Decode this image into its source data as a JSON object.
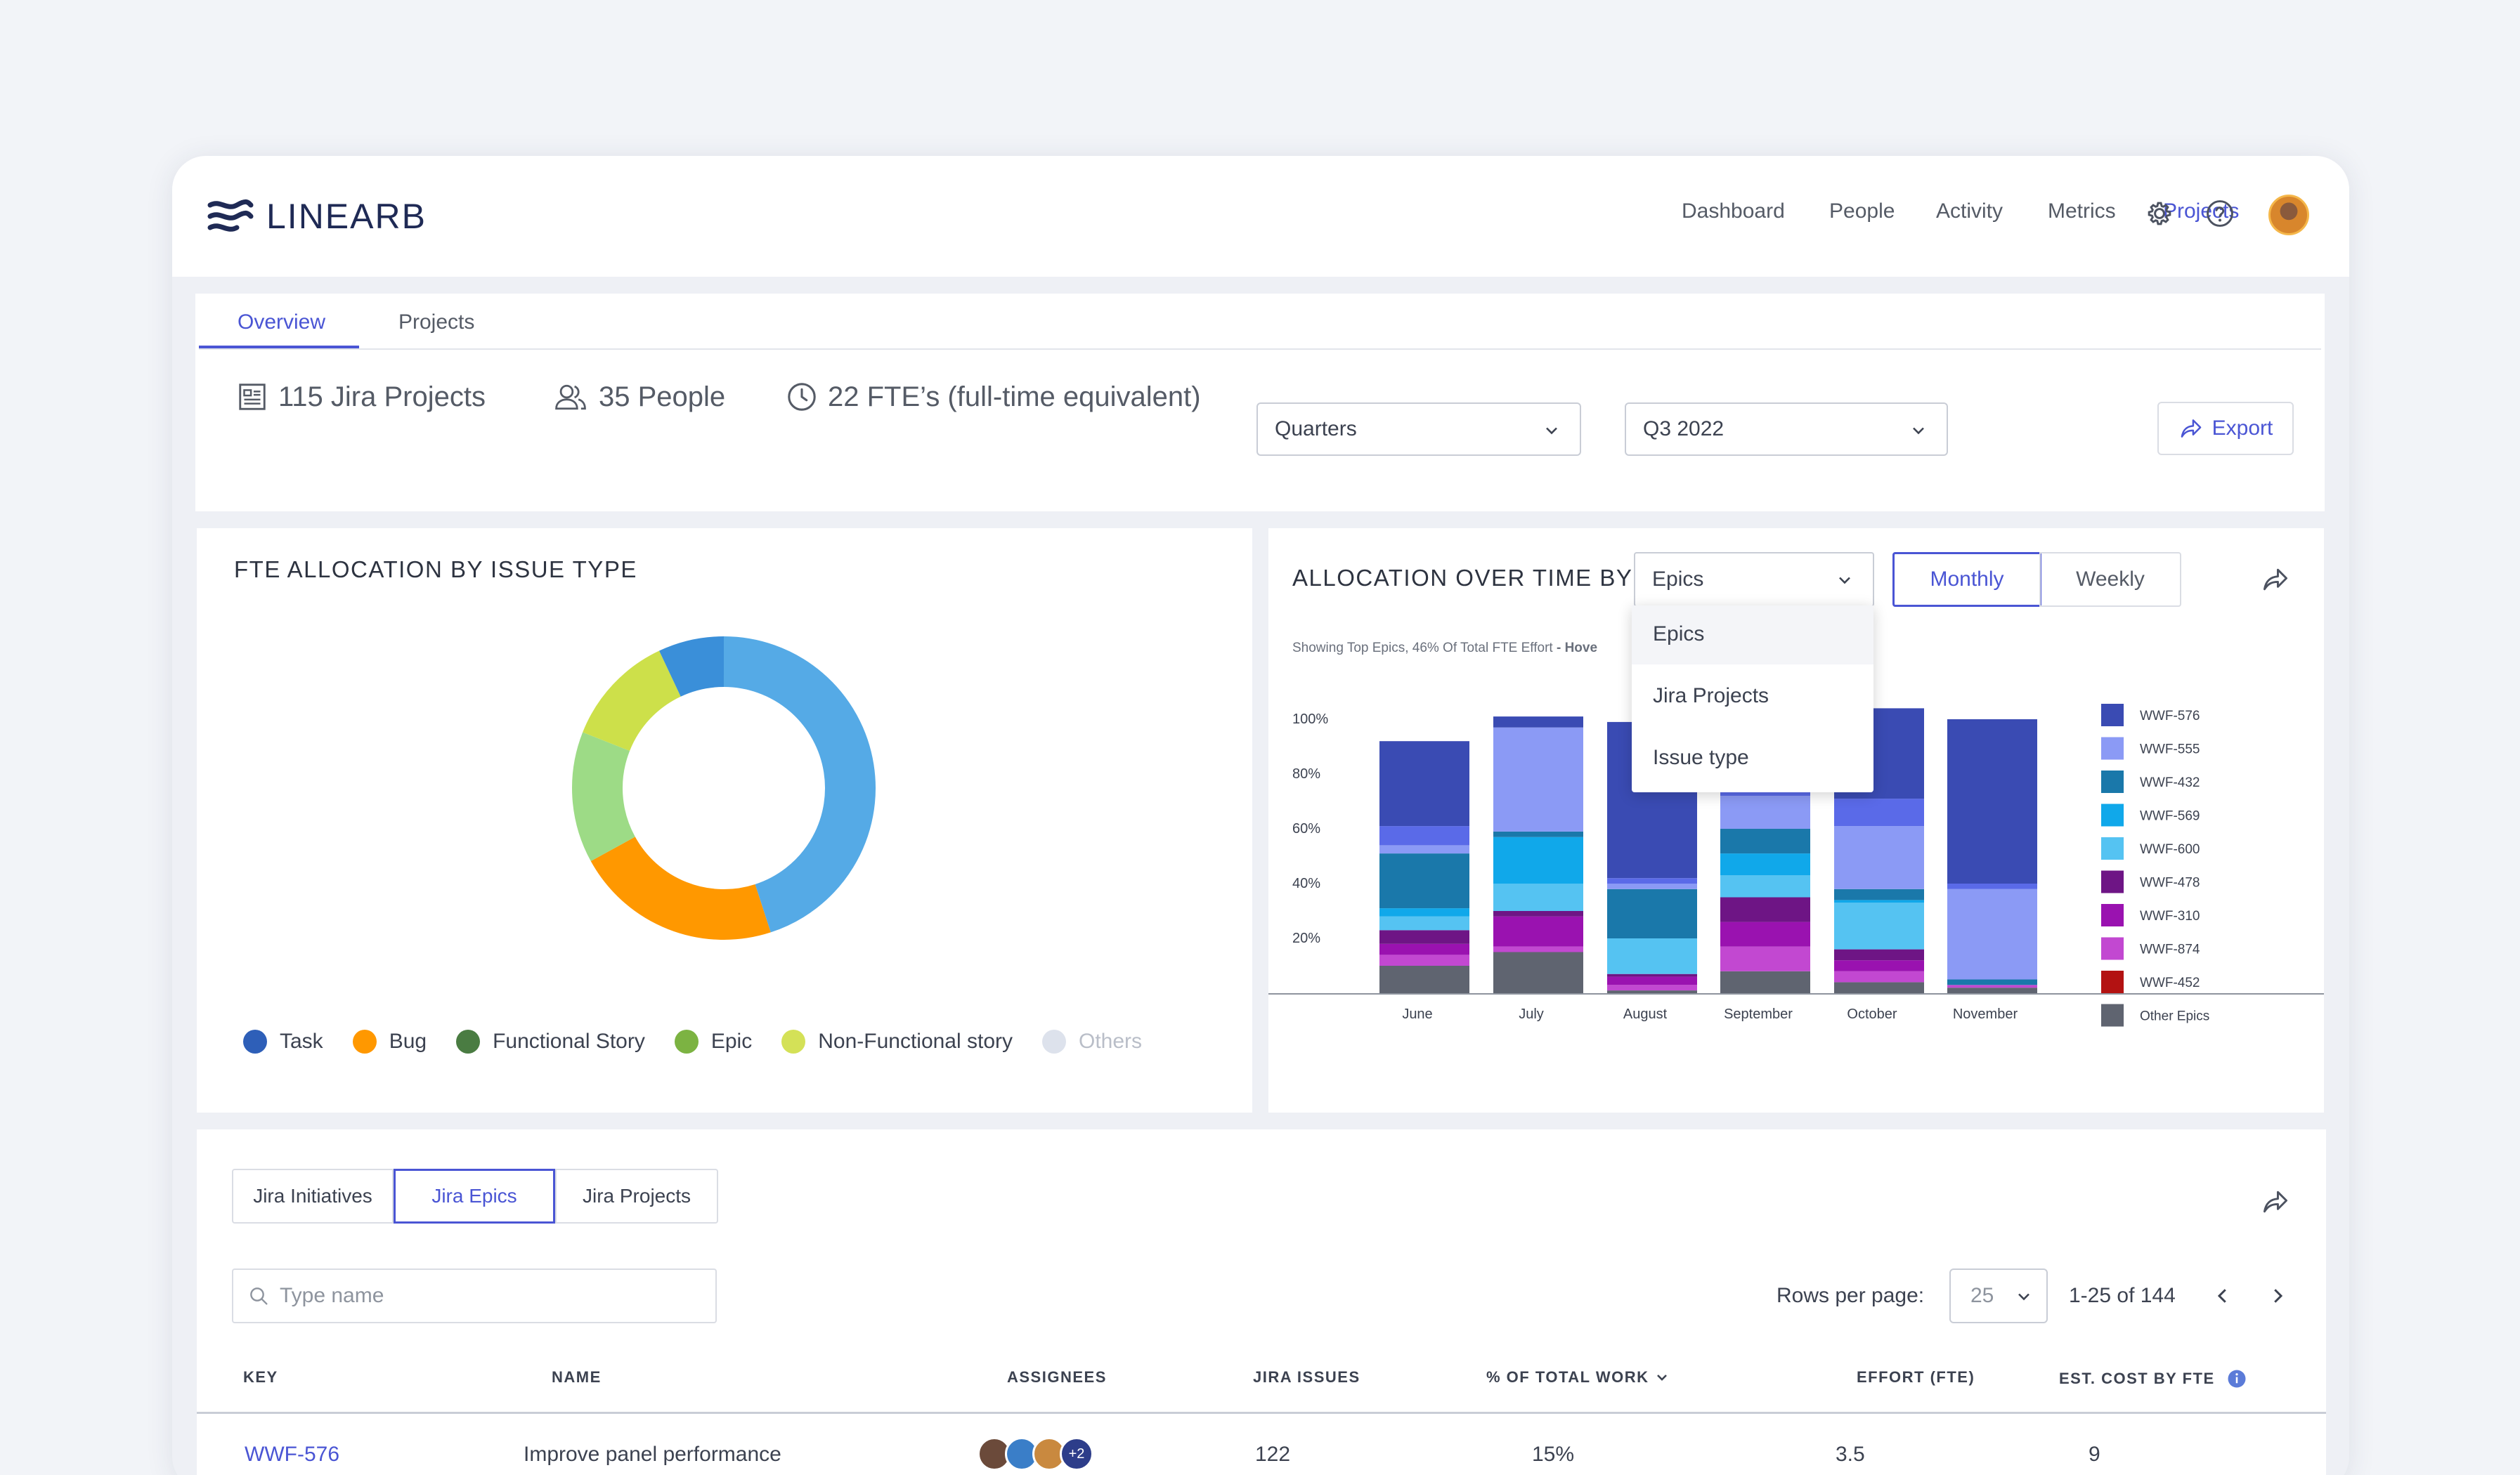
{
  "brand": {
    "name": "LINEARB"
  },
  "nav": {
    "items": [
      "Dashboard",
      "People",
      "Activity",
      "Metrics",
      "Projects"
    ],
    "active": "Projects"
  },
  "tabs": {
    "overview": "Overview",
    "projects": "Projects"
  },
  "stats": {
    "projects": "115 Jira Projects",
    "people": "35 People",
    "fte": "22 FTE’s (full-time equivalent)"
  },
  "filters": {
    "period": "Quarters",
    "quarter": "Q3 2022",
    "export": "Export"
  },
  "donut": {
    "title": "FTE ALLOCATION BY ISSUE TYPE",
    "legend": [
      {
        "label": "Task",
        "color": "#2e5fb8"
      },
      {
        "label": "Bug",
        "color": "#ff9800"
      },
      {
        "label": "Functional Story",
        "color": "#4a7c42"
      },
      {
        "label": "Epic",
        "color": "#7cb342"
      },
      {
        "label": "Non-Functional story",
        "color": "#d4e157"
      },
      {
        "label": "Others",
        "color": "#dde2ec"
      }
    ]
  },
  "allocation": {
    "title": "ALLOCATION OVER TIME BY",
    "group_by": "Epics",
    "monthly": "Monthly",
    "weekly": "Weekly",
    "note": "Showing Top Epics, 46% Of Total FTE Effort",
    "note_suffix": "- Hove",
    "dropdown_options": [
      "Epics",
      "Jira Projects",
      "Issue type"
    ]
  },
  "chart_data": [
    {
      "type": "pie",
      "title": "FTE ALLOCATION BY ISSUE TYPE",
      "donut": true,
      "categories": [
        "Task",
        "Bug",
        "Functional Story",
        "Epic",
        "Non-Functional story",
        "Others"
      ],
      "values": [
        45,
        22,
        0,
        14,
        12,
        7
      ],
      "slice_colors": [
        "#55aae6",
        "#ff9800",
        "#4a7c42",
        "#9ddb86",
        "#cde04a",
        "#3a8fd9"
      ]
    },
    {
      "type": "bar",
      "stacked": true,
      "categories": [
        "June",
        "July",
        "August",
        "September",
        "October",
        "November"
      ],
      "y_ticks": [
        "20%",
        "40%",
        "60%",
        "80%",
        "100%"
      ],
      "ylim": [
        0,
        100
      ],
      "series": [
        {
          "name": "Other Epics",
          "color": "#5f6470",
          "values": [
            10,
            15,
            1,
            8,
            4,
            2
          ]
        },
        {
          "name": "WWF-452",
          "color": "#b31212",
          "values": [
            0,
            0,
            0,
            0,
            0,
            0
          ]
        },
        {
          "name": "WWF-874",
          "color": "#c248d1",
          "values": [
            4,
            2,
            2,
            9,
            4,
            1
          ]
        },
        {
          "name": "WWF-310",
          "color": "#9a12b0",
          "values": [
            4,
            11,
            3,
            9,
            4,
            0
          ]
        },
        {
          "name": "WWF-478",
          "color": "#6e1585",
          "values": [
            5,
            2,
            1,
            9,
            4,
            0
          ]
        },
        {
          "name": "WWF-600",
          "color": "#55c3f2",
          "values": [
            5,
            10,
            13,
            8,
            17,
            0
          ]
        },
        {
          "name": "WWF-569",
          "color": "#10a8ea",
          "values": [
            3,
            17,
            0,
            8,
            1,
            0
          ]
        },
        {
          "name": "WWF-432",
          "color": "#1a78aa",
          "values": [
            20,
            2,
            18,
            9,
            4,
            2
          ]
        },
        {
          "name": "WWF-555",
          "color": "#8b9af5",
          "values": [
            3,
            38,
            2,
            12,
            23,
            33
          ]
        },
        {
          "name": "WWF-576",
          "color": "#5a6ae8",
          "values": [
            7,
            0,
            2,
            2,
            10,
            2
          ]
        },
        {
          "name": "WWF-576",
          "color": "#3a4bb3",
          "values": [
            31,
            4,
            57,
            21,
            33,
            60
          ]
        }
      ]
    }
  ],
  "legend_right": [
    {
      "label": "WWF-576",
      "color": "#3a4bb3"
    },
    {
      "label": "WWF-555",
      "color": "#8b9af5"
    },
    {
      "label": "WWF-432",
      "color": "#1a78aa"
    },
    {
      "label": "WWF-569",
      "color": "#10a8ea"
    },
    {
      "label": "WWF-600",
      "color": "#55c3f2"
    },
    {
      "label": "WWF-478",
      "color": "#6e1585"
    },
    {
      "label": "WWF-310",
      "color": "#9a12b0"
    },
    {
      "label": "WWF-874",
      "color": "#c248d1"
    },
    {
      "label": "WWF-452",
      "color": "#b31212"
    },
    {
      "label": "Other Epics",
      "color": "#5f6470"
    }
  ],
  "table": {
    "tabs": [
      "Jira Initiatives",
      "Jira Epics",
      "Jira Projects"
    ],
    "active_tab": "Jira Epics",
    "search_placeholder": "Type name",
    "rows_per_page_label": "Rows per page:",
    "rows_per_page": "25",
    "range": "1-25 of 144",
    "columns": [
      "KEY",
      "NAME",
      "ASSIGNEES",
      "JIRA ISSUES",
      "% OF TOTAL WORK",
      "EFFORT (FTE)",
      "EST. COST BY FTE"
    ],
    "rows": [
      {
        "key": "WWF-576",
        "name": "Improve panel performance",
        "assignees_extra": "+2",
        "issues": "122",
        "percent": "15%",
        "effort": "3.5",
        "cost": "9"
      }
    ]
  }
}
